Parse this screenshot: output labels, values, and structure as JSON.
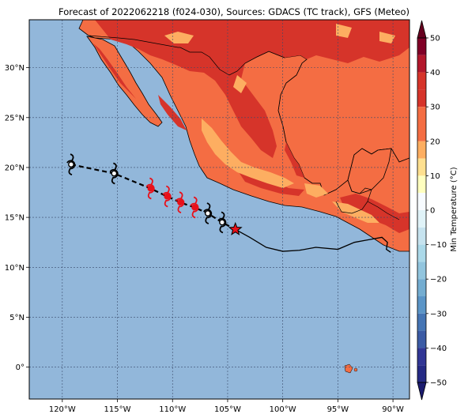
{
  "title": "Forecast of 2022062218 (f024-030), Sources: GDACS (TC track), GFS (Meteo)",
  "map": {
    "lon_range": [
      -123,
      -88.5
    ],
    "lat_range": [
      -3.2,
      34.8
    ],
    "x_ticks": [
      {
        "lon": -120,
        "label": "120°W"
      },
      {
        "lon": -115,
        "label": "115°W"
      },
      {
        "lon": -110,
        "label": "110°W"
      },
      {
        "lon": -105,
        "label": "105°W"
      },
      {
        "lon": -100,
        "label": "100°W"
      },
      {
        "lon": -95,
        "label": "95°W"
      },
      {
        "lon": -90,
        "label": "90°W"
      }
    ],
    "y_ticks": [
      {
        "lat": 30,
        "label": "30°N"
      },
      {
        "lat": 25,
        "label": "25°N"
      },
      {
        "lat": 20,
        "label": "20°N"
      },
      {
        "lat": 15,
        "label": "15°N"
      },
      {
        "lat": 10,
        "label": "10°N"
      },
      {
        "lat": 5,
        "label": "5°N"
      },
      {
        "lat": 0,
        "label": "0°"
      }
    ],
    "gridlines": true,
    "ocean_color": "#92b7da"
  },
  "colorbar": {
    "label": "Min Temperature (°C)",
    "range": [
      -50,
      50
    ],
    "ticks": [
      "50",
      "40",
      "30",
      "20",
      "10",
      "0",
      "−10",
      "−20",
      "−30",
      "−40",
      "−50"
    ],
    "levels": [
      {
        "from": 45,
        "to": 50,
        "color": "#800026"
      },
      {
        "from": 40,
        "to": 45,
        "color": "#b2172b"
      },
      {
        "from": 35,
        "to": 40,
        "color": "#d6342a"
      },
      {
        "from": 30,
        "to": 35,
        "color": "#d6342a"
      },
      {
        "from": 25,
        "to": 30,
        "color": "#f46d43"
      },
      {
        "from": 20,
        "to": 25,
        "color": "#f46d43"
      },
      {
        "from": 15,
        "to": 20,
        "color": "#fdae61"
      },
      {
        "from": 10,
        "to": 15,
        "color": "#fee090"
      },
      {
        "from": 5,
        "to": 10,
        "color": "#ffffbf"
      },
      {
        "from": 0,
        "to": 5,
        "color": "#f7fbff"
      },
      {
        "from": -5,
        "to": 0,
        "color": "#e0f3f8"
      },
      {
        "from": -10,
        "to": -5,
        "color": "#c6e3ef"
      },
      {
        "from": -15,
        "to": -10,
        "color": "#abd9e9"
      },
      {
        "from": -20,
        "to": -15,
        "color": "#92c5de"
      },
      {
        "from": -25,
        "to": -20,
        "color": "#74add1"
      },
      {
        "from": -30,
        "to": -25,
        "color": "#5b95c7"
      },
      {
        "from": -35,
        "to": -30,
        "color": "#4575b4"
      },
      {
        "from": -40,
        "to": -35,
        "color": "#3b5ba5"
      },
      {
        "from": -45,
        "to": -40,
        "color": "#313695"
      },
      {
        "from": -50,
        "to": -45,
        "color": "#252a85"
      }
    ],
    "extend_top_color": "#67001f",
    "extend_bottom_color": "#1b1b6e"
  },
  "cyclone": {
    "observed_track": [
      {
        "lon": -119.2,
        "lat": 20.3,
        "color": "black"
      },
      {
        "lon": -115.3,
        "lat": 19.4,
        "color": "black"
      }
    ],
    "forecast_track": [
      {
        "lon": -112.0,
        "lat": 17.9,
        "color": "red"
      },
      {
        "lon": -110.5,
        "lat": 17.1,
        "color": "red"
      },
      {
        "lon": -109.3,
        "lat": 16.5,
        "color": "red"
      },
      {
        "lon": -108.0,
        "lat": 16.0,
        "color": "red"
      },
      {
        "lon": -106.8,
        "lat": 15.4,
        "color": "black"
      },
      {
        "lon": -105.5,
        "lat": 14.5,
        "color": "black"
      }
    ],
    "current_position": {
      "lon": -104.3,
      "lat": 13.8,
      "symbol": "star"
    }
  }
}
